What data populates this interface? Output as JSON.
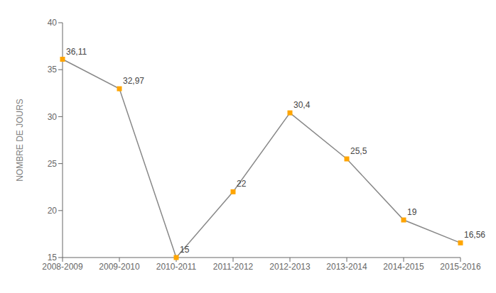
{
  "chart_data": {
    "type": "line",
    "ylabel": "NOMBRE DE JOURS",
    "categories": [
      "2008-2009",
      "2009-2010",
      "2010-2011",
      "2011-2012",
      "2012-2013",
      "2013-2014",
      "2014-2015",
      "2015-2016"
    ],
    "values": [
      36.11,
      32.97,
      15,
      22,
      30.4,
      25.5,
      19,
      16.56
    ],
    "value_labels": [
      "36,11",
      "32,97",
      "15",
      "22",
      "30,4",
      "25,5",
      "19",
      "16,56"
    ],
    "data_labels": true,
    "color": "#888888",
    "colors": [
      "#FFA500",
      "#FFA500",
      "#FFA500",
      "#FFA500",
      "#FFA500",
      "#FFA500",
      "#FFA500",
      "#FFA500"
    ],
    "marker": "square",
    "ylim": [
      15,
      40
    ],
    "yticks": [
      15,
      20,
      25,
      30,
      35,
      40
    ],
    "grid": false
  }
}
